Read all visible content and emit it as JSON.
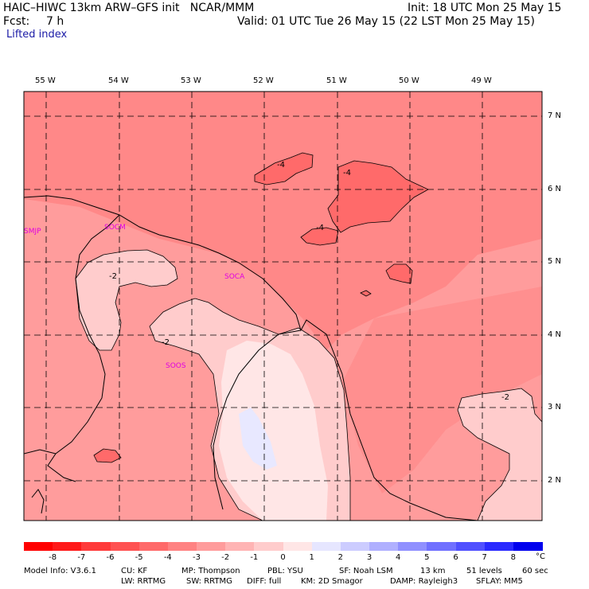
{
  "header": {
    "title": "HAIC–HIWC 13km ARW–GFS init   NCAR/MMM",
    "init": "Init: 18 UTC Mon 25 May 15",
    "fcst_label": "Fcst:",
    "fcst_value": "7 h",
    "valid": "Valid: 01 UTC Tue 26 May 15 (22 LST Mon 25 May 15)",
    "field": "Lifted index"
  },
  "map": {
    "lon_labels": [
      "55 W",
      "54 W",
      "53 W",
      "52 W",
      "51 W",
      "50 W",
      "49 W"
    ],
    "lat_labels": [
      "7 N",
      "6 N",
      "5 N",
      "4 N",
      "3 N",
      "2 N"
    ],
    "stations": [
      "SMJP",
      "SOCM",
      "SOCA",
      "SOOS"
    ],
    "contour_labels": [
      "-4",
      "-4",
      "-4",
      "-2",
      "-2",
      "-2"
    ]
  },
  "legend": {
    "labels": [
      "-8",
      "-7",
      "-6",
      "-5",
      "-4",
      "-3",
      "-2",
      "-1",
      "0",
      "1",
      "2",
      "3",
      "4",
      "5",
      "6",
      "7",
      "8"
    ],
    "unit": "°C",
    "colors": [
      "#ff1a1a",
      "#ff3a3a",
      "#ff5252",
      "#ff6a6a",
      "#ff8282",
      "#ff9c9c",
      "#ffb4b4",
      "#ffcccc",
      "#ffe6e6",
      "#e6e6ff",
      "#ccccff",
      "#b0b0ff",
      "#9090ff",
      "#7070ff",
      "#5050ff",
      "#2a2aff",
      "#0000ee"
    ]
  },
  "footer": {
    "line1": [
      "Model Info: V3.6.1",
      "CU: KF",
      "MP: Thompson",
      "PBL: YSU",
      "SF: Noah LSM",
      "13 km",
      "51 levels",
      "60 sec"
    ],
    "line2": [
      "LW: RRTMG",
      "SW: RRTMG",
      "DIFF: full",
      "KM: 2D Smagor",
      "DAMP: Rayleigh3",
      "SFLAY: MM5"
    ]
  }
}
